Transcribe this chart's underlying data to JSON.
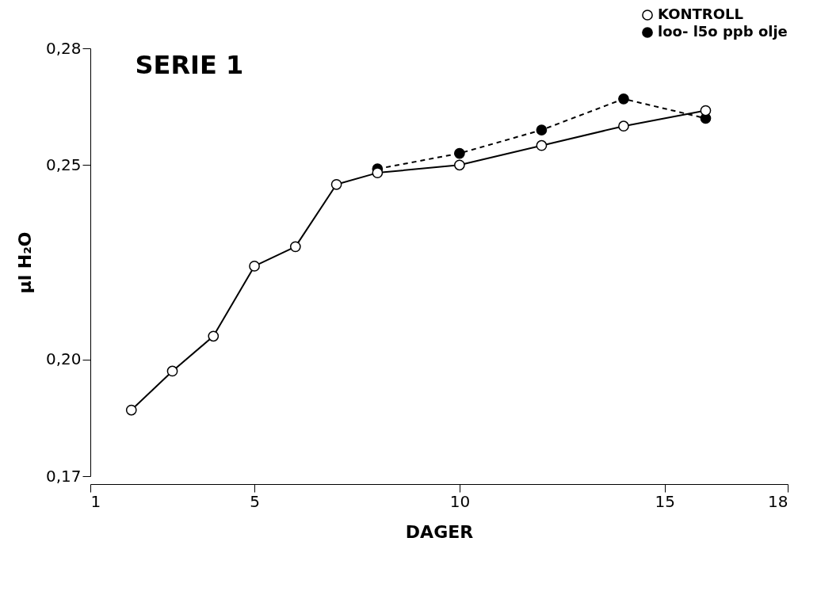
{
  "chart_data": {
    "type": "line",
    "title": "SERIE 1",
    "xlabel": "DAGER",
    "ylabel": "μl H₂O",
    "xlim": [
      1,
      18
    ],
    "xticks": [
      1,
      5,
      10,
      15,
      18
    ],
    "ylim": [
      0.17,
      0.28
    ],
    "yticks": [
      {
        "value": 0.17,
        "label": "0,17"
      },
      {
        "value": 0.2,
        "label": "0,20"
      },
      {
        "value": 0.25,
        "label": "0,25"
      },
      {
        "value": 0.28,
        "label": "0,28"
      }
    ],
    "grid": false,
    "legend": "top right",
    "marker": "circle",
    "series": [
      {
        "name": "KONTROLL",
        "color": "#000000",
        "line_style": "solid",
        "x": [
          2,
          3,
          4,
          5,
          6,
          7,
          8,
          10,
          12,
          14,
          16
        ],
        "values": [
          0.187,
          0.197,
          0.206,
          0.224,
          0.229,
          0.245,
          0.248,
          0.25,
          0.255,
          0.26,
          0.264
        ]
      },
      {
        "name": "loo- l5o ppb olje",
        "color": "#000000",
        "line_style": "dashed",
        "x": [
          8,
          10,
          12,
          14,
          16
        ],
        "values": [
          0.249,
          0.253,
          0.259,
          0.267,
          0.262
        ]
      }
    ]
  }
}
